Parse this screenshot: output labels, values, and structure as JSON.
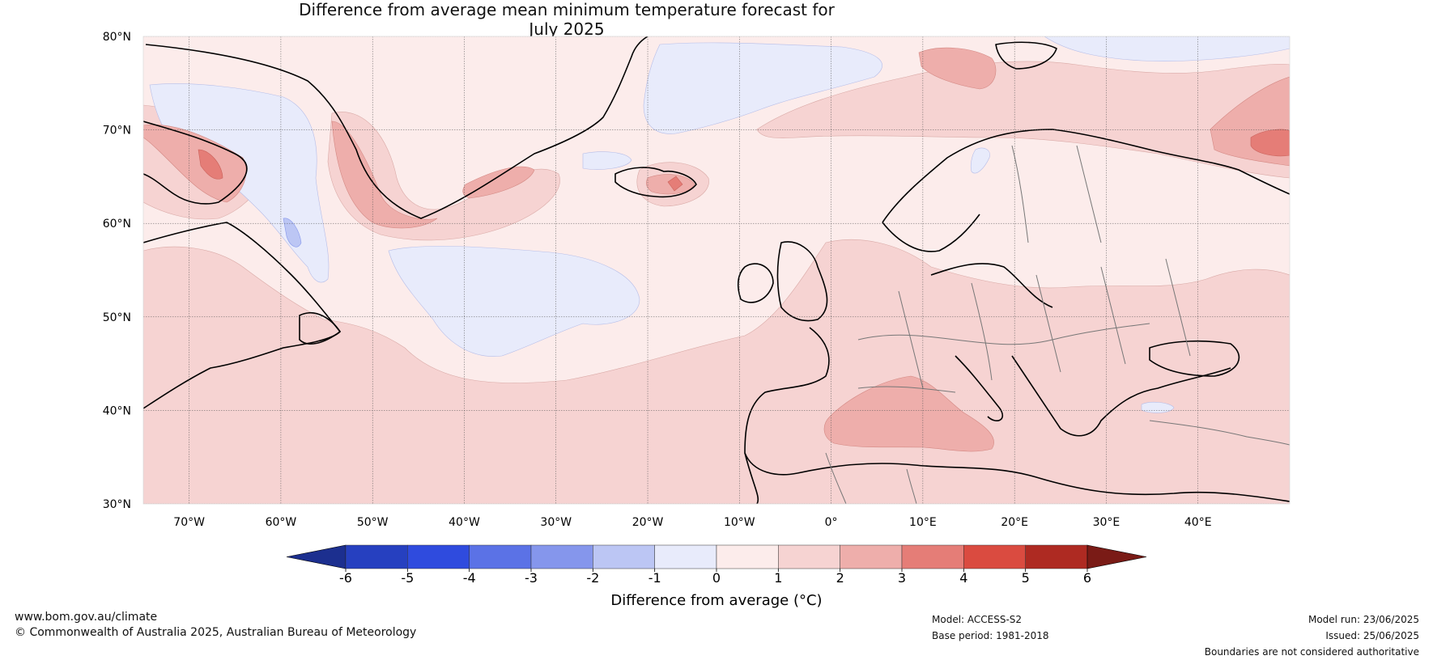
{
  "title": {
    "line1": "Difference from average mean minimum temperature forecast for",
    "line2": "July 2025"
  },
  "map": {
    "lat_range": [
      30,
      80
    ],
    "lon_range": [
      -75,
      50
    ],
    "lat_ticks": [
      "30°N",
      "40°N",
      "50°N",
      "60°N",
      "70°N",
      "80°N"
    ],
    "lon_ticks": [
      "70°W",
      "60°W",
      "50°W",
      "40°W",
      "30°W",
      "20°W",
      "10°W",
      "0°",
      "10°E",
      "20°E",
      "30°E",
      "40°E"
    ],
    "grid": true
  },
  "colorbar": {
    "label": "Difference from average (°C)",
    "ticks": [
      "-6",
      "-5",
      "-4",
      "-3",
      "-2",
      "-1",
      "0",
      "1",
      "2",
      "3",
      "4",
      "5",
      "6"
    ],
    "colors": [
      "#1c2f8f",
      "#2640c0",
      "#2f4bde",
      "#5b72e6",
      "#8596ec",
      "#bcc6f4",
      "#e8ebfb",
      "#fceceb",
      "#f6d3d2",
      "#eeaeab",
      "#e57d77",
      "#da4b40",
      "#ae2a22",
      "#7a1b16"
    ]
  },
  "footer": {
    "left": [
      "www.bom.gov.au/climate",
      "© Commonwealth of Australia 2025, Australian Bureau of Meteorology"
    ],
    "middle": [
      "Model: ACCESS-S2",
      "Base period: 1981-2018"
    ],
    "right": [
      "Model run: 23/06/2025",
      "Issued: 25/06/2025",
      "Boundaries are not considered authoritative"
    ]
  }
}
